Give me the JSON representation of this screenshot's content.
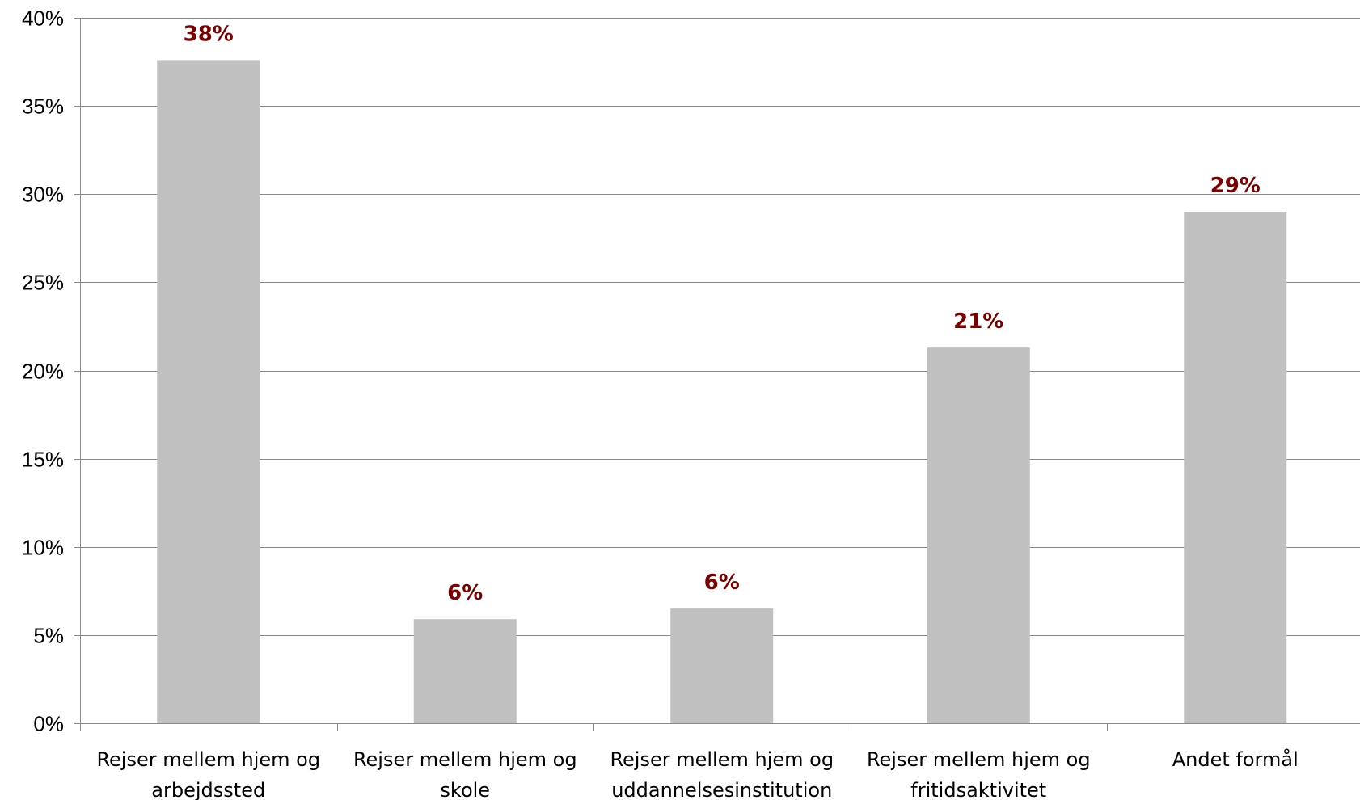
{
  "chart_data": {
    "type": "bar",
    "categories": [
      [
        "Rejser mellem hjem og",
        "arbejdssted"
      ],
      [
        "Rejser mellem hjem og",
        "skole"
      ],
      [
        "Rejser mellem hjem og",
        "uddannelsesinstitution"
      ],
      [
        "Rejser mellem hjem og",
        "fritidsaktivitet"
      ],
      [
        "Andet formål"
      ]
    ],
    "values": [
      37.6,
      5.9,
      6.5,
      21.3,
      29.0
    ],
    "data_labels": [
      "38%",
      "6%",
      "6%",
      "21%",
      "29%"
    ],
    "title": "",
    "xlabel": "",
    "ylabel": "",
    "ylim": [
      0,
      40
    ],
    "y_ticks": [
      0,
      5,
      10,
      15,
      20,
      25,
      30,
      35,
      40
    ],
    "y_tick_labels": [
      "0%",
      "5%",
      "10%",
      "15%",
      "20%",
      "25%",
      "30%",
      "35%",
      "40%"
    ],
    "grid": true,
    "legend": "none",
    "colors": {
      "bar": "#c0c0c0",
      "data_label": "#7b0000",
      "grid": "#888888",
      "axis": "#888888"
    }
  }
}
